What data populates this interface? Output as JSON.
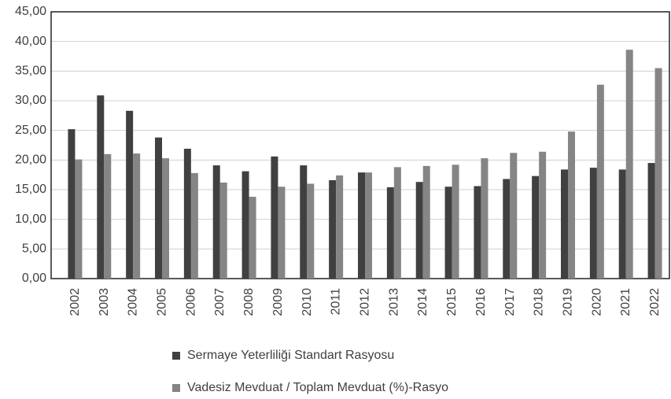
{
  "chart_data": {
    "type": "bar",
    "categories": [
      "2002",
      "2003",
      "2004",
      "2005",
      "2006",
      "2007",
      "2008",
      "2009",
      "2010",
      "2011",
      "2012",
      "2013",
      "2014",
      "2015",
      "2016",
      "2017",
      "2018",
      "2019",
      "2020",
      "2021",
      "2022"
    ],
    "series": [
      {
        "name": "Sermaye Yeterliliği Standart Rasyosu",
        "color": "#404040",
        "values": [
          25.2,
          30.9,
          28.3,
          23.8,
          21.9,
          19.1,
          18.1,
          20.6,
          19.1,
          16.6,
          17.9,
          15.4,
          16.3,
          15.5,
          15.6,
          16.8,
          17.3,
          18.4,
          18.7,
          18.4,
          19.5
        ]
      },
      {
        "name": "Vadesiz Mevduat / Toplam Mevduat (%)-Rasyo",
        "color": "#858585",
        "values": [
          20.1,
          21.0,
          21.1,
          20.3,
          17.8,
          16.2,
          13.8,
          15.5,
          16.0,
          17.4,
          17.9,
          18.8,
          19.0,
          19.2,
          20.3,
          21.2,
          21.4,
          24.8,
          32.7,
          38.6,
          35.5
        ]
      }
    ],
    "ylim": [
      0,
      45
    ],
    "yticks": [
      {
        "value": 0,
        "label": "0,00"
      },
      {
        "value": 5,
        "label": "5,00"
      },
      {
        "value": 10,
        "label": "10,00"
      },
      {
        "value": 15,
        "label": "15,00"
      },
      {
        "value": 20,
        "label": "20,00"
      },
      {
        "value": 25,
        "label": "25,00"
      },
      {
        "value": 30,
        "label": "30,00"
      },
      {
        "value": 35,
        "label": "35,00"
      },
      {
        "value": 40,
        "label": "40,00"
      },
      {
        "value": 45,
        "label": "45,00"
      }
    ],
    "grid": true,
    "legend": "bottom"
  }
}
